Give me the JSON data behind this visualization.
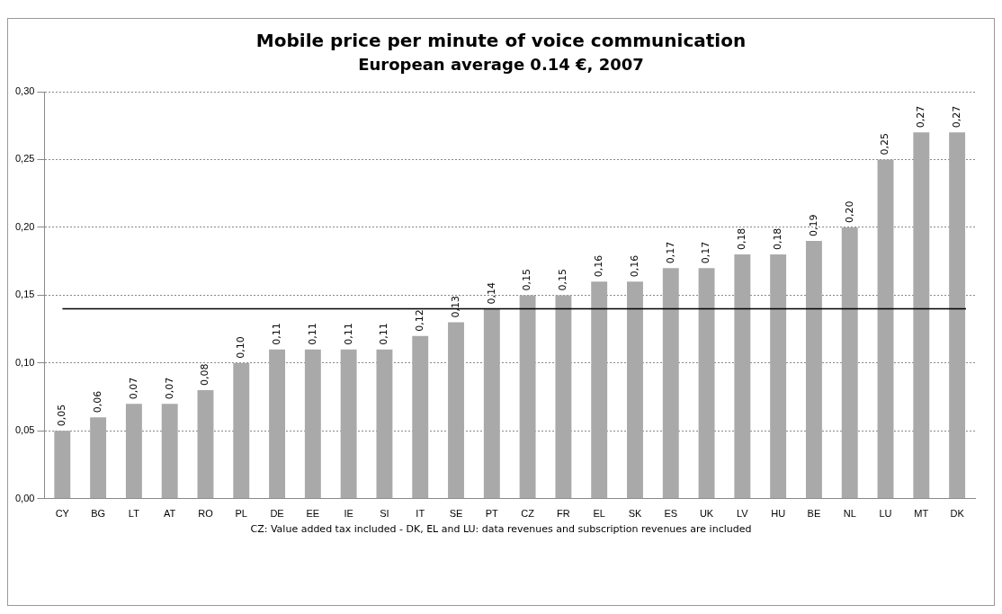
{
  "chart_data": {
    "type": "bar",
    "title": "Mobile price per minute of voice communication",
    "subtitle": "European average 0.14 €, 2007",
    "categories": [
      "CY",
      "BG",
      "LT",
      "AT",
      "RO",
      "PL",
      "DE",
      "EE",
      "IE",
      "SI",
      "IT",
      "SE",
      "PT",
      "CZ",
      "FR",
      "EL",
      "SK",
      "ES",
      "UK",
      "LV",
      "HU",
      "BE",
      "NL",
      "LU",
      "MT",
      "DK"
    ],
    "values": [
      0.05,
      0.06,
      0.07,
      0.07,
      0.08,
      0.1,
      0.11,
      0.11,
      0.11,
      0.11,
      0.12,
      0.13,
      0.14,
      0.15,
      0.15,
      0.16,
      0.16,
      0.17,
      0.17,
      0.18,
      0.18,
      0.19,
      0.2,
      0.25,
      0.27,
      0.27
    ],
    "value_labels": [
      "0,05",
      "0,06",
      "0,07",
      "0,07",
      "0,08",
      "0,10",
      "0,11",
      "0,11",
      "0,11",
      "0,11",
      "0,12",
      "0,13",
      "0,14",
      "0,15",
      "0,15",
      "0,16",
      "0,16",
      "0,17",
      "0,17",
      "0,18",
      "0,18",
      "0,19",
      "0,20",
      "0,25",
      "0,27",
      "0,27"
    ],
    "color": "#a9a9a9",
    "ylim": [
      0,
      0.3
    ],
    "yticks": [
      {
        "value": 0,
        "label": "0,00"
      },
      {
        "value": 0.05,
        "label": "0,05"
      },
      {
        "value": 0.1,
        "label": "0,10"
      },
      {
        "value": 0.15,
        "label": "0,15"
      },
      {
        "value": 0.2,
        "label": "0,20"
      },
      {
        "value": 0.25,
        "label": "0,25"
      },
      {
        "value": 0.3,
        "label": "0,30"
      }
    ],
    "grid": "y",
    "ref_lines": [
      {
        "axis": "y",
        "value": 0.14,
        "color": "#000000"
      }
    ],
    "annotations": [
      "CZ: Value added tax included - DK, EL and LU: data revenues and subscription revenues are included"
    ]
  }
}
